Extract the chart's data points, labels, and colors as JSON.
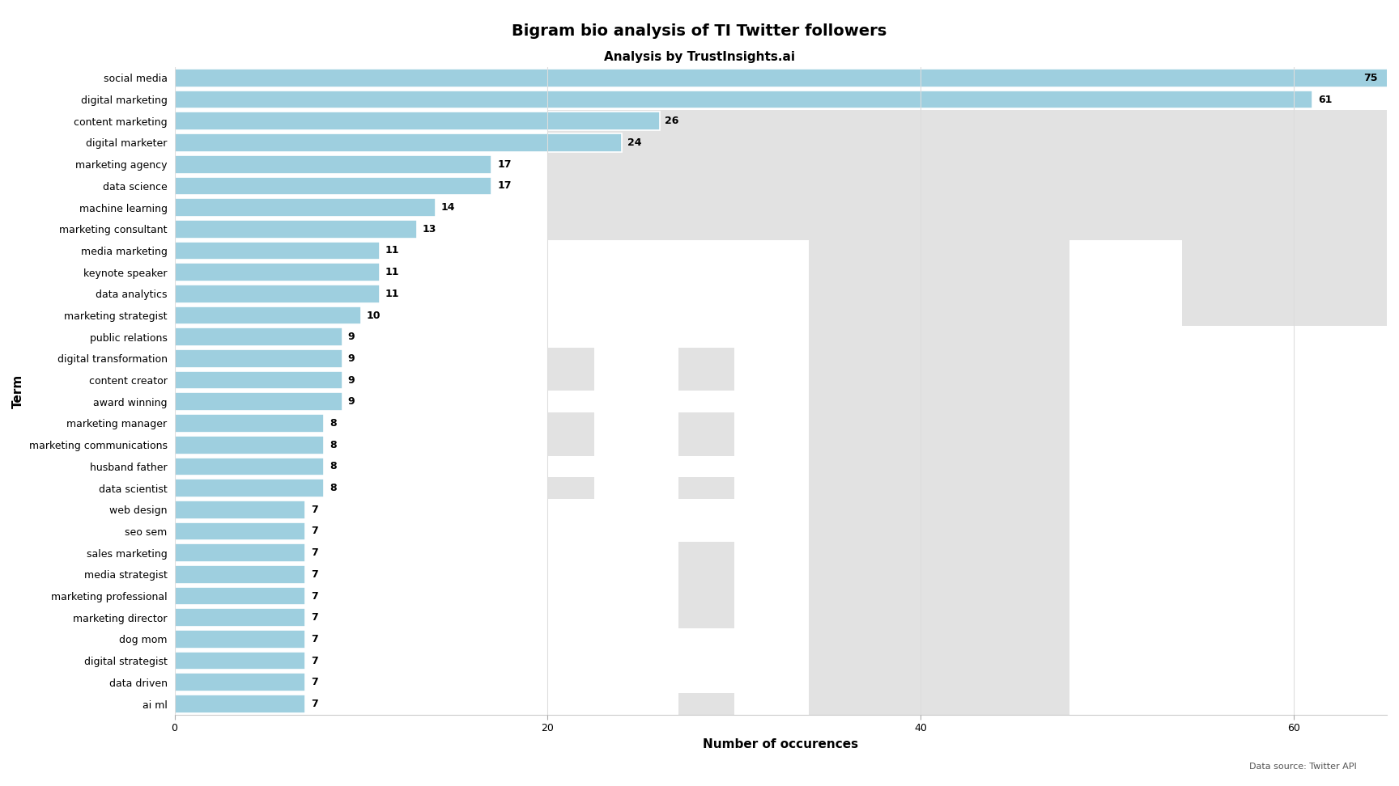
{
  "title": "Bigram bio analysis of TI Twitter followers",
  "subtitle": "Analysis by TrustInsights.ai",
  "xlabel": "Number of occurences",
  "ylabel": "Term",
  "categories": [
    "social media",
    "digital marketing",
    "content marketing",
    "digital marketer",
    "marketing agency",
    "data science",
    "machine learning",
    "marketing consultant",
    "media marketing",
    "keynote speaker",
    "data analytics",
    "marketing strategist",
    "public relations",
    "digital transformation",
    "content creator",
    "award winning",
    "marketing manager",
    "marketing communications",
    "husband father",
    "data scientist",
    "web design",
    "seo sem",
    "sales marketing",
    "media strategist",
    "marketing professional",
    "marketing director",
    "dog mom",
    "digital strategist",
    "data driven",
    "ai ml"
  ],
  "values": [
    75,
    61,
    26,
    24,
    17,
    17,
    14,
    13,
    11,
    11,
    11,
    10,
    9,
    9,
    9,
    9,
    8,
    8,
    8,
    8,
    7,
    7,
    7,
    7,
    7,
    7,
    7,
    7,
    7,
    7
  ],
  "bar_color": "#9ECFDF",
  "bar_edgecolor": "white",
  "t_color": "#e2e2e2",
  "bg_color": "#ffffff",
  "grid_color": "#dddddd",
  "xlim": [
    0,
    65
  ],
  "footnote": "Data source: Twitter API",
  "title_fontsize": 14,
  "subtitle_fontsize": 11,
  "label_fontsize": 9,
  "axis_label_fontsize": 11
}
